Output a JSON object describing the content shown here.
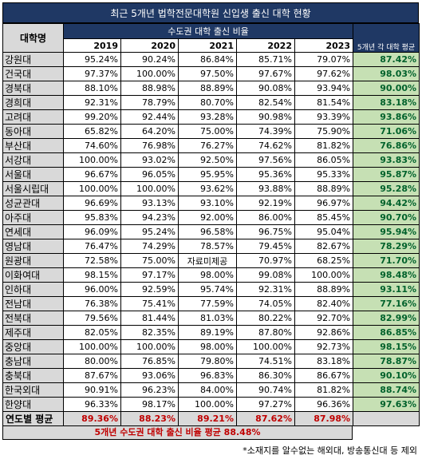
{
  "title": "최근 5개년 법학전문대학원 신입생 출신 대학 현황",
  "header": {
    "name_col": "대학명",
    "group_label": "수도권 대학 출신 비율",
    "years": [
      "2019",
      "2020",
      "2021",
      "2022",
      "2023"
    ],
    "avg_col": "5개년 각 대학 평균"
  },
  "rows": [
    {
      "name": "강원대",
      "values": [
        "95.24%",
        "90.24%",
        "86.84%",
        "85.71%",
        "79.07%"
      ],
      "avg": "87.42%"
    },
    {
      "name": "건국대",
      "values": [
        "97.37%",
        "100.00%",
        "97.50%",
        "97.67%",
        "97.62%"
      ],
      "avg": "98.03%"
    },
    {
      "name": "경북대",
      "values": [
        "88.10%",
        "88.98%",
        "88.89%",
        "90.08%",
        "93.94%"
      ],
      "avg": "90.00%"
    },
    {
      "name": "경희대",
      "values": [
        "92.31%",
        "78.79%",
        "80.70%",
        "82.54%",
        "81.54%"
      ],
      "avg": "83.18%"
    },
    {
      "name": "고려대",
      "values": [
        "99.20%",
        "92.44%",
        "93.28%",
        "90.98%",
        "93.39%"
      ],
      "avg": "93.86%"
    },
    {
      "name": "동아대",
      "values": [
        "65.82%",
        "64.20%",
        "75.00%",
        "74.39%",
        "75.90%"
      ],
      "avg": "71.06%"
    },
    {
      "name": "부산대",
      "values": [
        "74.60%",
        "76.98%",
        "76.27%",
        "74.62%",
        "81.82%"
      ],
      "avg": "76.86%"
    },
    {
      "name": "서강대",
      "values": [
        "100.00%",
        "93.02%",
        "92.50%",
        "97.56%",
        "86.05%"
      ],
      "avg": "93.83%"
    },
    {
      "name": "서울대",
      "values": [
        "96.67%",
        "96.05%",
        "95.95%",
        "95.36%",
        "95.33%"
      ],
      "avg": "95.87%"
    },
    {
      "name": "서울시립대",
      "values": [
        "100.00%",
        "100.00%",
        "93.62%",
        "93.88%",
        "88.89%"
      ],
      "avg": "95.28%"
    },
    {
      "name": "성균관대",
      "values": [
        "96.69%",
        "93.13%",
        "93.10%",
        "92.19%",
        "96.97%"
      ],
      "avg": "94.42%"
    },
    {
      "name": "아주대",
      "values": [
        "95.83%",
        "94.23%",
        "92.00%",
        "86.00%",
        "85.45%"
      ],
      "avg": "90.70%"
    },
    {
      "name": "연세대",
      "values": [
        "96.09%",
        "95.24%",
        "96.58%",
        "96.75%",
        "95.04%"
      ],
      "avg": "95.94%"
    },
    {
      "name": "영남대",
      "values": [
        "76.47%",
        "74.29%",
        "78.57%",
        "79.45%",
        "82.67%"
      ],
      "avg": "78.29%"
    },
    {
      "name": "원광대",
      "values": [
        "72.58%",
        "75.00%",
        "자료미제공",
        "70.97%",
        "68.25%"
      ],
      "avg": "71.70%"
    },
    {
      "name": "이화여대",
      "values": [
        "98.15%",
        "97.17%",
        "98.00%",
        "99.08%",
        "100.00%"
      ],
      "avg": "98.48%"
    },
    {
      "name": "인하대",
      "values": [
        "96.00%",
        "92.59%",
        "95.74%",
        "92.31%",
        "88.89%"
      ],
      "avg": "93.11%"
    },
    {
      "name": "전남대",
      "values": [
        "76.38%",
        "75.41%",
        "77.59%",
        "74.05%",
        "82.40%"
      ],
      "avg": "77.16%"
    },
    {
      "name": "전북대",
      "values": [
        "79.56%",
        "81.44%",
        "81.03%",
        "80.22%",
        "92.70%"
      ],
      "avg": "82.99%"
    },
    {
      "name": "제주대",
      "values": [
        "82.05%",
        "82.35%",
        "89.19%",
        "87.80%",
        "92.86%"
      ],
      "avg": "86.85%"
    },
    {
      "name": "중앙대",
      "values": [
        "100.00%",
        "100.00%",
        "98.00%",
        "100.00%",
        "92.73%"
      ],
      "avg": "98.15%"
    },
    {
      "name": "충남대",
      "values": [
        "80.00%",
        "76.85%",
        "79.80%",
        "74.51%",
        "83.18%"
      ],
      "avg": "78.87%"
    },
    {
      "name": "충북대",
      "values": [
        "87.67%",
        "93.06%",
        "96.83%",
        "86.30%",
        "86.67%"
      ],
      "avg": "90.10%"
    },
    {
      "name": "한국외대",
      "values": [
        "90.91%",
        "96.23%",
        "84.00%",
        "90.74%",
        "81.82%"
      ],
      "avg": "88.74%"
    },
    {
      "name": "한양대",
      "values": [
        "96.33%",
        "98.17%",
        "100.00%",
        "97.27%",
        "96.36%"
      ],
      "avg": "97.63%"
    }
  ],
  "footer": {
    "label": "연도별 평균",
    "values": [
      "89.36%",
      "88.23%",
      "89.21%",
      "87.62%",
      "87.98%"
    ]
  },
  "overall": "5개년 수도권 대학 출신 비율 평균 88.48%",
  "note": "*소재지를 알수없는 해외대, 방송통신대 등 제외",
  "colors": {
    "header_bg": "#1f3864",
    "name_bg": "#d9d9d9",
    "avg_bg": "#c6e0b4",
    "avg_text": "#00612b",
    "footer_text": "#c00000"
  }
}
